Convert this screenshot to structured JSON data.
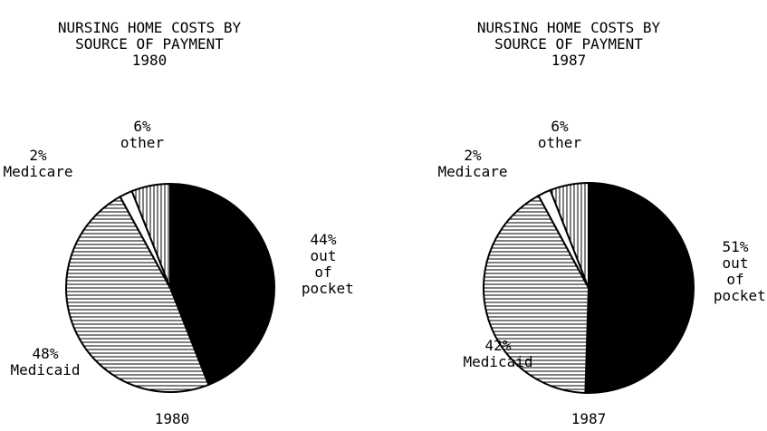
{
  "charts": [
    {
      "type": "pie",
      "title": "NURSING HOME COSTS BY SOURCE OF PAYMENT",
      "subtitle": "1980",
      "caption": "1980",
      "categories": [
        "out of pocket",
        "Medicaid",
        "Medicare",
        "other"
      ],
      "values": [
        44,
        48,
        2,
        6
      ],
      "value_labels": [
        "44%",
        "48%",
        "2%",
        "6%"
      ],
      "patterns": [
        "solid",
        "horizontal",
        "none",
        "vertical"
      ]
    },
    {
      "type": "pie",
      "title": "NURSING HOME COSTS BY SOURCE OF PAYMENT",
      "subtitle": "1987",
      "caption": "1987",
      "categories": [
        "out of pocket",
        "Medicaid",
        "Medicare",
        "other"
      ],
      "values": [
        51,
        42,
        2,
        6
      ],
      "value_labels": [
        "51%",
        "42%",
        "2%",
        "6%"
      ],
      "patterns": [
        "solid",
        "horizontal",
        "none",
        "vertical"
      ]
    }
  ]
}
